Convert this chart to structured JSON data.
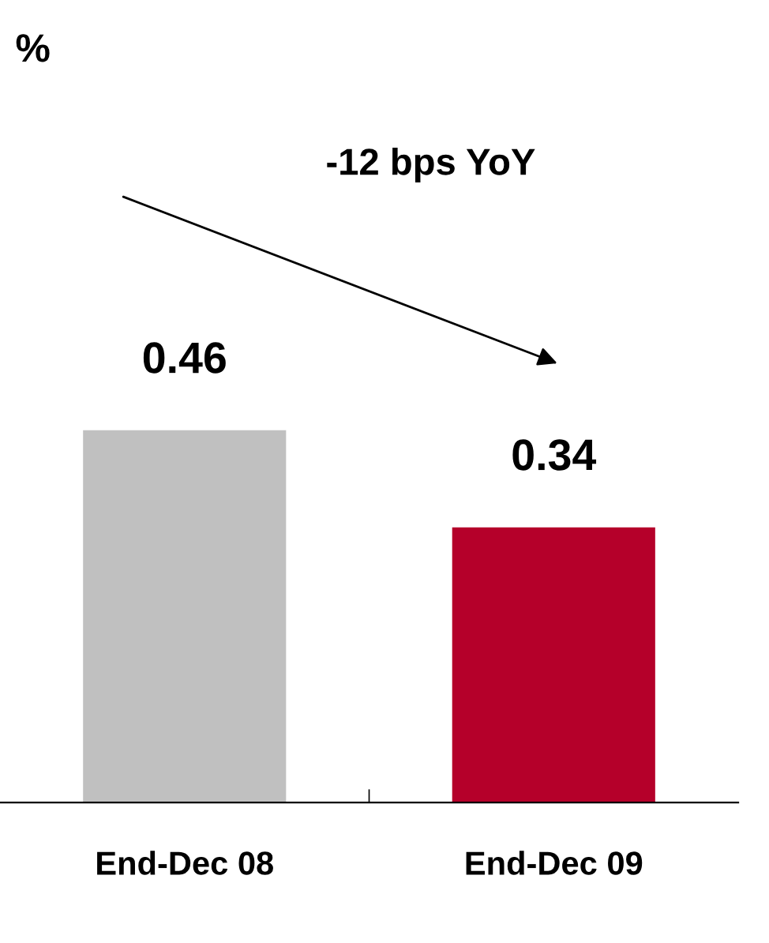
{
  "chart_data": {
    "type": "bar",
    "title": "%",
    "categories": [
      "End-Dec 08",
      "End-Dec 09"
    ],
    "values": [
      0.46,
      0.34
    ],
    "colors": [
      "#c0c0c0",
      "#b5002a"
    ],
    "data_labels": true,
    "annotations": [
      "-12 bps YoY"
    ],
    "grid": false,
    "legend": false,
    "tick_labels": "x"
  }
}
